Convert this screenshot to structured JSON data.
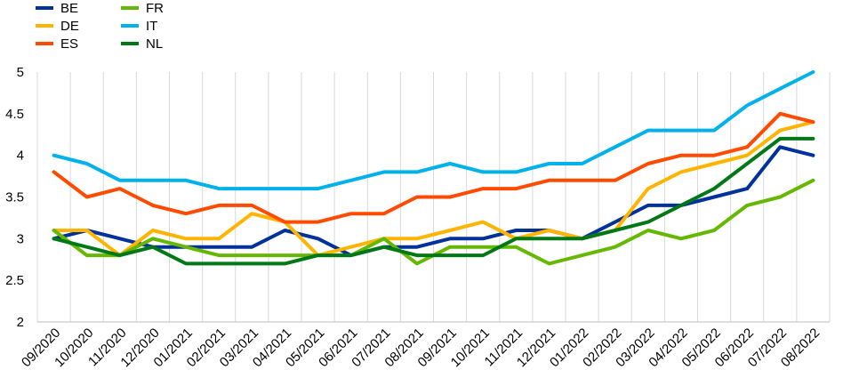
{
  "chart_data": {
    "type": "line",
    "title": "",
    "xlabel": "",
    "ylabel": "",
    "ylim": [
      2,
      5
    ],
    "yticks": [
      "2",
      "2.5",
      "3",
      "3.5",
      "4",
      "4.5",
      "5"
    ],
    "grid": "vertical",
    "legend_position": "top-left",
    "categories": [
      "09/2020",
      "10/2020",
      "11/2020",
      "12/2020",
      "01/2021",
      "02/2021",
      "03/2021",
      "04/2021",
      "05/2021",
      "06/2021",
      "07/2021",
      "08/2021",
      "09/2021",
      "10/2021",
      "11/2021",
      "12/2021",
      "01/2022",
      "02/2022",
      "03/2022",
      "04/2022",
      "05/2022",
      "06/2022",
      "07/2022",
      "08/2022"
    ],
    "series": [
      {
        "name": "BE",
        "color": "#003299",
        "values": [
          3.0,
          3.1,
          3.0,
          2.9,
          2.9,
          2.9,
          2.9,
          3.1,
          3.0,
          2.8,
          2.9,
          2.9,
          3.0,
          3.0,
          3.1,
          3.1,
          3.0,
          3.2,
          3.4,
          3.4,
          3.5,
          3.6,
          4.1,
          4.0
        ]
      },
      {
        "name": "DE",
        "color": "#FFB400",
        "values": [
          3.1,
          3.1,
          2.8,
          3.1,
          3.0,
          3.0,
          3.3,
          3.2,
          2.8,
          2.9,
          3.0,
          3.0,
          3.1,
          3.2,
          3.0,
          3.1,
          3.0,
          3.1,
          3.6,
          3.8,
          3.9,
          4.0,
          4.3,
          4.4
        ]
      },
      {
        "name": "ES",
        "color": "#FF4B00",
        "values": [
          3.8,
          3.5,
          3.6,
          3.4,
          3.3,
          3.4,
          3.4,
          3.2,
          3.2,
          3.3,
          3.3,
          3.5,
          3.5,
          3.6,
          3.6,
          3.7,
          3.7,
          3.7,
          3.9,
          4.0,
          4.0,
          4.1,
          4.5,
          4.4
        ]
      },
      {
        "name": "FR",
        "color": "#65B800",
        "values": [
          3.1,
          2.8,
          2.8,
          3.0,
          2.9,
          2.8,
          2.8,
          2.8,
          2.8,
          2.8,
          3.0,
          2.7,
          2.9,
          2.9,
          2.9,
          2.7,
          2.8,
          2.9,
          3.1,
          3.0,
          3.1,
          3.4,
          3.5,
          3.7
        ]
      },
      {
        "name": "IT",
        "color": "#00B1EA",
        "values": [
          4.0,
          3.9,
          3.7,
          3.7,
          3.7,
          3.6,
          3.6,
          3.6,
          3.6,
          3.7,
          3.8,
          3.8,
          3.9,
          3.8,
          3.8,
          3.9,
          3.9,
          4.1,
          4.3,
          4.3,
          4.3,
          4.6,
          4.8,
          5.0
        ]
      },
      {
        "name": "NL",
        "color": "#007816",
        "values": [
          3.0,
          2.9,
          2.8,
          2.9,
          2.7,
          2.7,
          2.7,
          2.7,
          2.8,
          2.8,
          2.9,
          2.8,
          2.8,
          2.8,
          3.0,
          3.0,
          3.0,
          3.1,
          3.2,
          3.4,
          3.6,
          3.9,
          4.2,
          4.2
        ]
      }
    ]
  }
}
